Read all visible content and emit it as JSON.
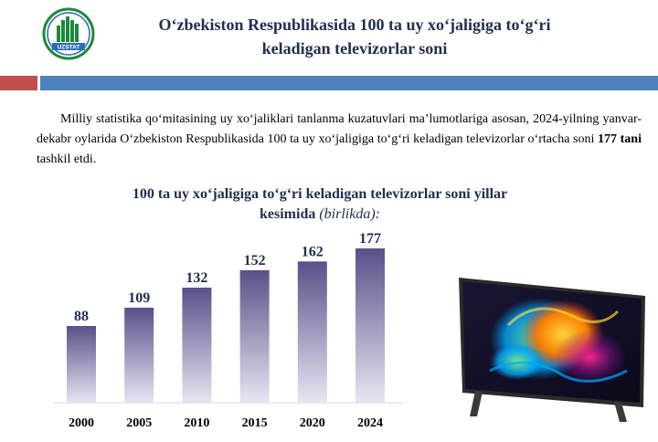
{
  "logo": {
    "text": "UZSTAT"
  },
  "header": {
    "title_line1": "O‘zbekiston Respublikasida 100 ta uy xo‘jaligiga to‘g‘ri",
    "title_line2": "keladigan televizorlar soni"
  },
  "intro": {
    "text_before": "Milliy statistika qo‘mitasining uy xo‘jaliklari tanlanma kuzatuvlari ma’lumotlariga asosan, 2024-yilning yanvar-dekabr oylarida O‘zbekiston Respublikasida 100 ta uy xo‘jaligiga to‘g‘ri keladigan televizorlar o‘rtacha soni ",
    "highlight": "177 tani",
    "text_after": " tashkil etdi."
  },
  "chart_data": {
    "type": "bar",
    "title_line1": "100 ta uy xo‘jaligiga to‘g‘ri keladigan televizorlar soni yillar",
    "title_line2": "kesimida",
    "unit": "(birlikda):",
    "categories": [
      "2000",
      "2005",
      "2010",
      "2015",
      "2020",
      "2024"
    ],
    "values": [
      88,
      109,
      132,
      152,
      162,
      177
    ],
    "ylim": [
      0,
      177
    ],
    "grid": false,
    "legend": "none",
    "colors": {
      "bar_top": "#5a4f8a",
      "bar_bottom": "#e8e6f2",
      "label": "#1f2f4f"
    }
  },
  "colors": {
    "accent_red": "#c0504d",
    "accent_blue": "#4f81bd",
    "title": "#1f2f4f"
  },
  "icons": {
    "logo": "uzstat-logo-icon",
    "image": "television-icon"
  }
}
